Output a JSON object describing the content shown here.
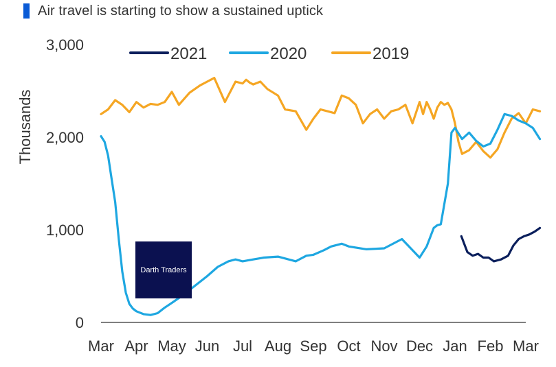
{
  "chart_data": {
    "type": "line",
    "title": "Air travel is starting to show a sustained uptick",
    "ylabel": "Thousands",
    "xlabel": "",
    "ylim": [
      0,
      3000
    ],
    "y_ticks": [
      {
        "value": 0,
        "label": "0"
      },
      {
        "value": 1000,
        "label": "1,000"
      },
      {
        "value": 2000,
        "label": "2,000"
      },
      {
        "value": 3000,
        "label": "3,000"
      }
    ],
    "x_ticks": [
      "Mar",
      "Apr",
      "May",
      "Jun",
      "Jul",
      "Aug",
      "Sep",
      "Oct",
      "Nov",
      "Dec",
      "Jan",
      "Feb",
      "Mar"
    ],
    "grid": false,
    "legend_position": "top",
    "series": [
      {
        "name": "2021",
        "color": "#0b1f5c",
        "x": [
          10.18,
          10.35,
          10.5,
          10.65,
          10.8,
          10.95,
          11.1,
          11.3,
          11.5,
          11.65,
          11.8,
          11.95,
          12.1,
          12.25,
          12.4
        ],
        "values": [
          930,
          760,
          720,
          740,
          700,
          700,
          660,
          680,
          720,
          830,
          900,
          930,
          950,
          980,
          1020
        ]
      },
      {
        "name": "2020",
        "color": "#1ea7e1",
        "x": [
          0.0,
          0.1,
          0.2,
          0.3,
          0.4,
          0.5,
          0.6,
          0.7,
          0.8,
          0.9,
          1.0,
          1.2,
          1.4,
          1.6,
          1.8,
          2.0,
          2.3,
          2.6,
          3.0,
          3.3,
          3.6,
          3.8,
          4.0,
          4.3,
          4.6,
          5.0,
          5.5,
          5.8,
          6.0,
          6.3,
          6.5,
          6.8,
          7.0,
          7.5,
          8.0,
          8.5,
          9.0,
          9.2,
          9.4,
          9.5,
          9.6,
          9.8,
          9.9,
          10.0,
          10.2,
          10.4,
          10.6,
          10.8,
          11.0,
          11.2,
          11.4,
          11.6,
          11.8,
          12.0,
          12.2,
          12.4
        ],
        "values": [
          2010,
          1950,
          1800,
          1550,
          1300,
          900,
          550,
          320,
          200,
          150,
          120,
          90,
          80,
          100,
          160,
          210,
          290,
          380,
          500,
          600,
          660,
          680,
          660,
          680,
          700,
          710,
          660,
          720,
          730,
          780,
          820,
          850,
          820,
          790,
          800,
          900,
          700,
          820,
          1020,
          1050,
          1060,
          1500,
          2050,
          2100,
          1980,
          2050,
          1960,
          1900,
          1930,
          2080,
          2250,
          2230,
          2180,
          2150,
          2100,
          1980
        ]
      },
      {
        "name": "2019",
        "color": "#f5a623",
        "x": [
          0.0,
          0.2,
          0.4,
          0.6,
          0.8,
          1.0,
          1.2,
          1.4,
          1.6,
          1.8,
          2.0,
          2.2,
          2.5,
          2.8,
          3.0,
          3.2,
          3.5,
          3.8,
          4.0,
          4.1,
          4.2,
          4.3,
          4.5,
          4.7,
          5.0,
          5.2,
          5.5,
          5.8,
          6.0,
          6.2,
          6.4,
          6.6,
          6.8,
          7.0,
          7.2,
          7.4,
          7.6,
          7.8,
          8.0,
          8.2,
          8.4,
          8.6,
          8.8,
          9.0,
          9.1,
          9.2,
          9.3,
          9.4,
          9.5,
          9.6,
          9.7,
          9.8,
          9.9,
          10.0,
          10.1,
          10.2,
          10.4,
          10.6,
          10.8,
          11.0,
          11.2,
          11.4,
          11.6,
          11.8,
          12.0,
          12.2,
          12.4
        ],
        "values": [
          2250,
          2300,
          2400,
          2350,
          2270,
          2380,
          2320,
          2360,
          2350,
          2380,
          2490,
          2350,
          2480,
          2560,
          2600,
          2640,
          2380,
          2600,
          2580,
          2620,
          2590,
          2570,
          2600,
          2520,
          2450,
          2300,
          2280,
          2080,
          2200,
          2300,
          2280,
          2260,
          2450,
          2420,
          2350,
          2150,
          2250,
          2300,
          2200,
          2280,
          2300,
          2350,
          2150,
          2380,
          2250,
          2380,
          2300,
          2200,
          2320,
          2380,
          2350,
          2370,
          2300,
          2150,
          1950,
          1820,
          1860,
          1950,
          1850,
          1780,
          1870,
          2050,
          2200,
          2260,
          2150,
          2300,
          2280
        ]
      }
    ],
    "watermark": "Darth Traders"
  }
}
